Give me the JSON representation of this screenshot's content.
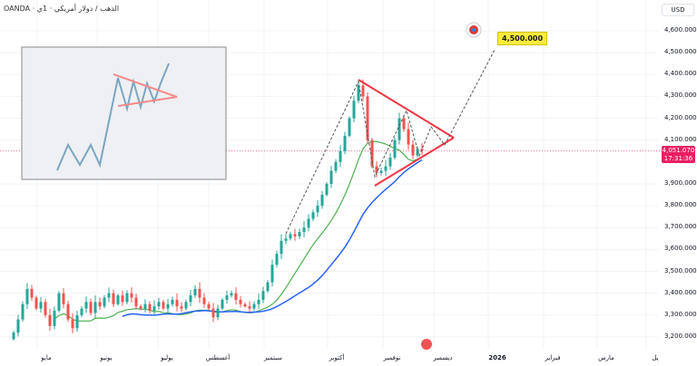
{
  "header": {
    "title": "OANDA · الذهب / دولار أمريكي · 1ي",
    "currency": "USD"
  },
  "price_axis": [
    "4,600.000",
    "4,500.000",
    "4,400.000",
    "4,300.000",
    "4,200.000",
    "4,100.000",
    "3,900.000",
    "3,800.000",
    "3,700.000",
    "3,600.000",
    "3,500.000",
    "3,400.000",
    "3,300.000",
    "3,200.000"
  ],
  "price_axis_values": [
    4600,
    4500,
    4400,
    4300,
    4200,
    4100,
    3900,
    3800,
    3700,
    3600,
    3500,
    3400,
    3300,
    3200
  ],
  "current_price": {
    "value": "4,051.070",
    "countdown": "17:31:36",
    "color": "#e91e63"
  },
  "target": {
    "label": "4,500.000",
    "color": "#ffeb3b"
  },
  "time_axis": [
    {
      "label": "مايو",
      "bold": false
    },
    {
      "label": "يونيو",
      "bold": false
    },
    {
      "label": "يوليو",
      "bold": false
    },
    {
      "label": "أغسطس",
      "bold": false
    },
    {
      "label": "سبتمبر",
      "bold": false
    },
    {
      "label": "أكتوبر",
      "bold": false
    },
    {
      "label": "نوفمبر",
      "bold": false
    },
    {
      "label": "ديسمبر",
      "bold": false
    },
    {
      "label": "2026",
      "bold": true
    },
    {
      "label": "فبراير",
      "bold": false
    },
    {
      "label": "مارس",
      "bold": false
    },
    {
      "label": "يل",
      "bold": false
    }
  ],
  "colors": {
    "up": "#26a69a",
    "down": "#ef5350",
    "ma_fast": "#4caf50",
    "ma_slow": "#2962ff",
    "pattern": "#f23645"
  },
  "closes": [
    3220,
    3280,
    3350,
    3420,
    3380,
    3330,
    3360,
    3300,
    3250,
    3320,
    3400,
    3350,
    3280,
    3240,
    3300,
    3330,
    3360,
    3310,
    3360,
    3340,
    3380,
    3400,
    3350,
    3390,
    3360,
    3400,
    3380,
    3340,
    3330,
    3350,
    3320,
    3340,
    3360,
    3330,
    3350,
    3370,
    3340,
    3330,
    3360,
    3390,
    3420,
    3380,
    3350,
    3330,
    3290,
    3330,
    3370,
    3390,
    3400,
    3370,
    3350,
    3340,
    3330,
    3350,
    3370,
    3410,
    3450,
    3530,
    3580,
    3640,
    3650,
    3670,
    3660,
    3680,
    3700,
    3740,
    3770,
    3800,
    3850,
    3900,
    3960,
    4000,
    4050,
    4120,
    4200,
    4280,
    4350,
    4300,
    4100,
    3980,
    3950,
    3960,
    3980,
    4020,
    4100,
    4200,
    4150,
    4080,
    4030,
    4060,
    4051
  ]
}
